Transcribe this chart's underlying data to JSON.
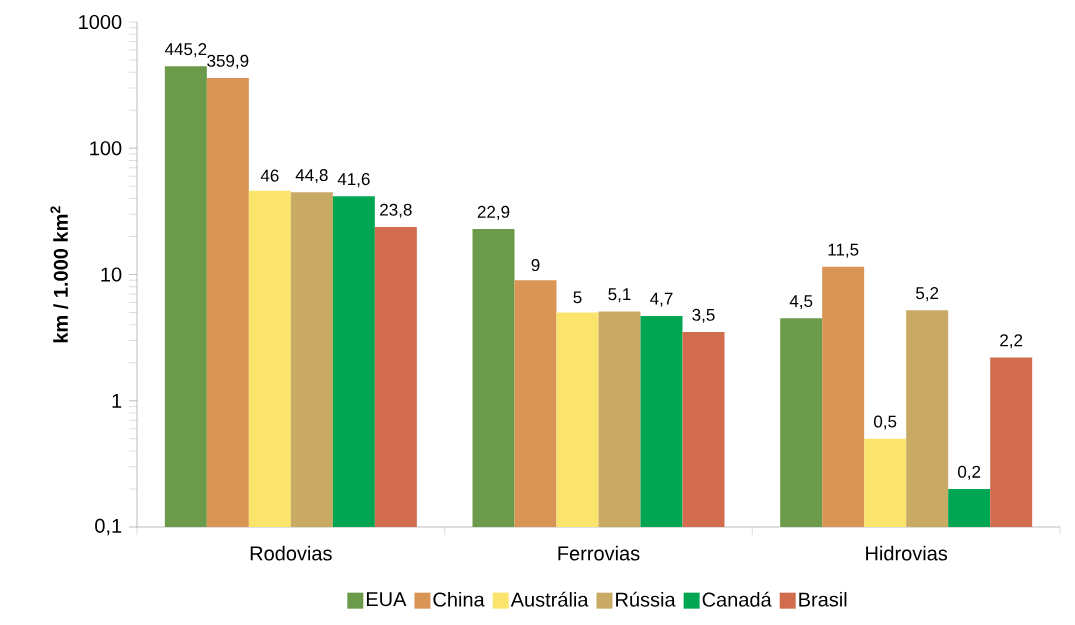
{
  "chart_data": {
    "type": "bar",
    "ylabel": "km / 1.000 km$^{2}$",
    "log": true,
    "legend": "bottom",
    "categories": [
      "Rodovias",
      "Ferrovias",
      "Hidrovias"
    ],
    "ylim": [
      0.1,
      1000
    ],
    "yticks": [
      {
        "value": 0.1,
        "label": "0,1"
      },
      1,
      10,
      100,
      1000
    ],
    "series": [
      {
        "name": "EUA",
        "color": "#6a9a4a",
        "values": [
          445.2,
          22.9,
          4.5
        ],
        "value_labels": [
          "445,2",
          "22,9",
          "4,5"
        ]
      },
      {
        "name": "China",
        "color": "#d99555",
        "values": [
          359.9,
          9,
          11.5
        ],
        "value_labels": [
          "359,9",
          "9",
          "11,5"
        ]
      },
      {
        "name": "Austrália",
        "color": "#fbe46c",
        "values": [
          46,
          5,
          0.5
        ],
        "value_labels": [
          "46",
          "5",
          "0,5"
        ]
      },
      {
        "name": "Rússia",
        "color": "#c9aa64",
        "values": [
          44.8,
          5.1,
          5.2
        ],
        "value_labels": [
          "44,8",
          "5,1",
          "5,2"
        ]
      },
      {
        "name": "Canadá",
        "color": "#00a651",
        "values": [
          41.6,
          4.7,
          0.2
        ],
        "value_labels": [
          "41,6",
          "4,7",
          "0,2"
        ]
      },
      {
        "name": "Brasil",
        "color": "#d26c4e",
        "values": [
          23.8,
          3.5,
          2.2
        ],
        "value_labels": [
          "23,8",
          "3,5",
          "2,2"
        ]
      }
    ]
  }
}
